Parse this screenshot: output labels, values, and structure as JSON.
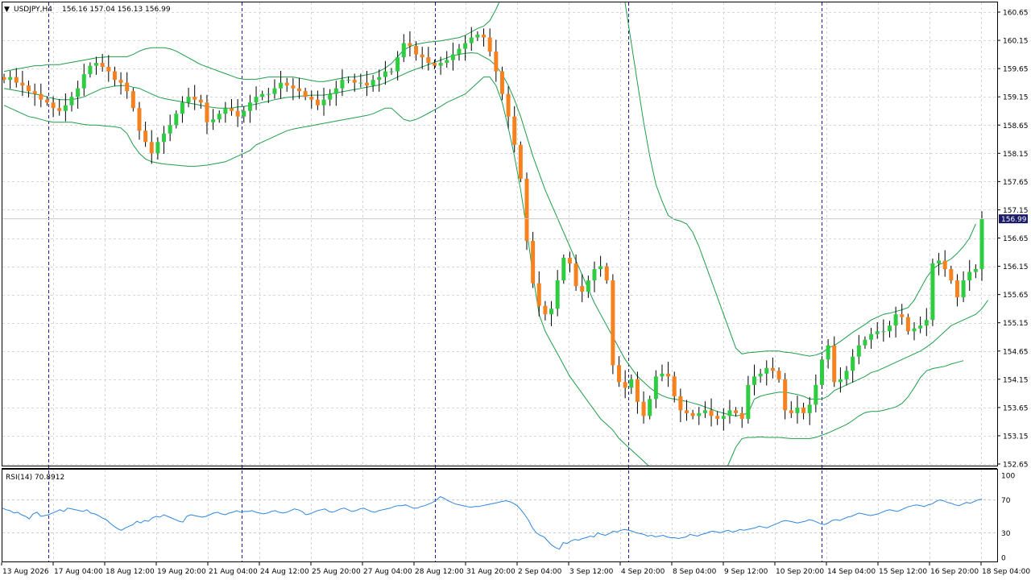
{
  "header": {
    "menu_arrow": "▼",
    "symbol": "USDJPY,H4",
    "ohlc": "156.16 157.04 156.13 156.99"
  },
  "rsi_header": {
    "text": "RSI(14) 70.8912"
  },
  "price_badge": "156.99",
  "colors": {
    "bull": "#2ECC40",
    "bear": "#F5821F",
    "bands": "#1E9E4A",
    "rsi_line": "#2E86DE",
    "grid": "#d8d8d8",
    "separator": "#1a1aa0",
    "badge_bg": "#1a1a66"
  },
  "chart_data": {
    "type": "candlestick",
    "title": "USDJPY,H4",
    "price_axis": {
      "min": 152.65,
      "max": 160.65,
      "ticks": [
        "160.65",
        "160.15",
        "159.65",
        "159.15",
        "158.65",
        "158.15",
        "157.65",
        "157.15",
        "156.65",
        "156.15",
        "155.65",
        "155.15",
        "154.65",
        "154.15",
        "153.65",
        "153.15",
        "152.65"
      ]
    },
    "time_labels": [
      "13 Aug 2026",
      "17 Aug 04:00",
      "18 Aug 12:00",
      "19 Aug 20:00",
      "21 Aug 04:00",
      "24 Aug 12:00",
      "25 Aug 20:00",
      "27 Aug 04:00",
      "28 Aug 12:00",
      "31 Aug 20:00",
      "2 Sep 04:00",
      "3 Sep 12:00",
      "4 Sep 20:00",
      "8 Sep 04:00",
      "9 Sep 12:00",
      "10 Sep 20:00",
      "14 Sep 04:00",
      "15 Sep 12:00",
      "16 Sep 20:00",
      "18 Sep 04:00"
    ],
    "current_price": 156.99,
    "candle_closes": [
      159.45,
      159.5,
      159.4,
      159.35,
      159.25,
      159.2,
      159.1,
      159.05,
      158.95,
      158.9,
      159.0,
      159.15,
      159.3,
      159.55,
      159.7,
      159.75,
      159.68,
      159.6,
      159.45,
      159.4,
      159.25,
      158.95,
      158.55,
      158.35,
      158.15,
      158.35,
      158.5,
      158.65,
      158.85,
      159.05,
      159.15,
      159.1,
      159.05,
      158.7,
      158.75,
      158.85,
      158.95,
      158.9,
      158.8,
      158.9,
      159.05,
      159.15,
      159.2,
      159.2,
      159.3,
      159.4,
      159.35,
      159.3,
      159.25,
      159.15,
      159.1,
      159.0,
      159.1,
      159.2,
      159.3,
      159.45,
      159.45,
      159.4,
      159.4,
      159.35,
      159.45,
      159.5,
      159.6,
      159.6,
      159.85,
      160.1,
      160.05,
      159.9,
      159.85,
      159.75,
      159.7,
      159.75,
      159.8,
      159.9,
      160.0,
      160.1,
      160.2,
      160.25,
      160.2,
      159.95,
      159.6,
      159.2,
      158.8,
      158.3,
      157.7,
      156.6,
      155.85,
      155.45,
      155.3,
      155.4,
      155.9,
      156.3,
      156.2,
      155.8,
      155.7,
      155.9,
      156.1,
      156.15,
      155.9,
      154.4,
      154.1,
      154.0,
      154.15,
      153.75,
      153.5,
      153.8,
      154.2,
      154.25,
      154.2,
      153.85,
      153.6,
      153.55,
      153.5,
      153.55,
      153.6,
      153.5,
      153.45,
      153.5,
      153.6,
      153.55,
      153.45,
      154.05,
      154.2,
      154.25,
      154.35,
      154.3,
      154.15,
      153.6,
      153.55,
      153.65,
      153.55,
      153.7,
      154.05,
      154.5,
      154.75,
      154.1,
      154.15,
      154.3,
      154.55,
      154.75,
      154.85,
      154.95,
      155.0,
      155.0,
      155.1,
      155.3,
      155.25,
      155.0,
      155.05,
      155.1,
      155.2,
      156.2,
      156.25,
      156.1,
      155.9,
      155.6,
      155.9,
      156.05,
      156.1,
      156.99
    ],
    "upper_band": [
      159.6,
      159.62,
      159.64,
      159.66,
      159.68,
      159.7,
      159.7,
      159.72,
      159.72,
      159.72,
      159.74,
      159.76,
      159.78,
      159.8,
      159.82,
      159.84,
      159.85,
      159.86,
      159.86,
      159.86,
      159.86,
      159.9,
      159.96,
      160.0,
      160.02,
      160.02,
      160.02,
      160.0,
      159.96,
      159.9,
      159.84,
      159.78,
      159.72,
      159.68,
      159.64,
      159.6,
      159.56,
      159.52,
      159.48,
      159.46,
      159.46,
      159.46,
      159.48,
      159.5,
      159.5,
      159.5,
      159.5,
      159.5,
      159.48,
      159.46,
      159.44,
      159.42,
      159.42,
      159.44,
      159.46,
      159.48,
      159.5,
      159.5,
      159.52,
      159.54,
      159.56,
      159.6,
      159.66,
      159.74,
      159.86,
      159.98,
      160.04,
      160.08,
      160.1,
      160.12,
      160.13,
      160.14,
      160.16,
      160.18,
      160.2,
      160.24,
      160.3,
      160.36,
      160.4,
      160.5,
      160.7,
      160.95,
      161.25,
      161.6,
      162.0,
      162.5,
      163.0,
      163.5,
      163.9,
      164.2,
      164.4,
      164.5,
      164.5,
      164.4,
      164.2,
      164.0,
      163.7,
      163.3,
      162.8,
      162.2,
      161.5,
      160.8,
      160.1,
      159.4,
      158.7,
      158.1,
      157.6,
      157.3,
      157.05,
      156.98,
      156.95,
      156.9,
      156.75,
      156.5,
      156.2,
      155.9,
      155.6,
      155.3,
      155.0,
      154.7,
      154.6,
      154.62,
      154.63,
      154.64,
      154.65,
      154.65,
      154.65,
      154.63,
      154.62,
      154.6,
      154.58,
      154.56,
      154.58,
      154.62,
      154.7,
      154.75,
      154.82,
      154.9,
      154.98,
      155.05,
      155.12,
      155.2,
      155.25,
      155.3,
      155.32,
      155.35,
      155.38,
      155.42,
      155.55,
      155.75,
      155.95,
      156.1,
      156.18,
      156.22,
      156.28,
      156.38,
      156.5,
      156.65,
      156.9
    ],
    "middle_band": [
      159.3,
      159.28,
      159.26,
      159.24,
      159.22,
      159.2,
      159.18,
      159.15,
      159.12,
      159.1,
      159.1,
      159.1,
      159.12,
      159.15,
      159.2,
      159.25,
      159.3,
      159.32,
      159.34,
      159.35,
      159.35,
      159.32,
      159.3,
      159.25,
      159.2,
      159.15,
      159.12,
      159.1,
      159.08,
      159.06,
      159.04,
      159.02,
      159.0,
      158.98,
      158.96,
      158.95,
      158.95,
      158.95,
      158.97,
      158.98,
      159.0,
      159.02,
      159.05,
      159.07,
      159.1,
      159.12,
      159.14,
      159.15,
      159.16,
      159.17,
      159.18,
      159.18,
      159.18,
      159.2,
      159.22,
      159.24,
      159.26,
      159.28,
      159.3,
      159.32,
      159.34,
      159.36,
      159.4,
      159.45,
      159.5,
      159.55,
      159.6,
      159.64,
      159.68,
      159.72,
      159.76,
      159.8,
      159.84,
      159.88,
      159.9,
      159.92,
      159.93,
      159.92,
      159.86,
      159.8,
      159.7,
      159.55,
      159.35,
      159.1,
      158.8,
      158.45,
      158.1,
      157.8,
      157.5,
      157.25,
      157.0,
      156.75,
      156.5,
      156.25,
      156.0,
      155.75,
      155.5,
      155.3,
      155.1,
      154.9,
      154.7,
      154.5,
      154.35,
      154.2,
      154.1,
      154.0,
      153.92,
      153.86,
      153.82,
      153.8,
      153.78,
      153.76,
      153.73,
      153.7,
      153.66,
      153.62,
      153.58,
      153.55,
      153.52,
      153.5,
      153.52,
      153.55,
      153.8,
      153.85,
      153.88,
      153.9,
      153.92,
      153.92,
      153.9,
      153.88,
      153.85,
      153.8,
      153.8,
      153.8,
      153.85,
      153.95,
      154.0,
      154.05,
      154.1,
      154.15,
      154.2,
      154.27,
      154.3,
      154.35,
      154.4,
      154.45,
      154.5,
      154.55,
      154.6,
      154.65,
      154.72,
      154.8,
      154.9,
      155.0,
      155.1,
      155.15,
      155.2,
      155.25,
      155.3,
      155.4,
      155.55
    ],
    "lower_band": [
      159.0,
      158.95,
      158.9,
      158.85,
      158.8,
      158.78,
      158.75,
      158.72,
      158.7,
      158.7,
      158.7,
      158.7,
      158.68,
      158.66,
      158.65,
      158.65,
      158.64,
      158.63,
      158.62,
      158.6,
      158.5,
      158.3,
      158.15,
      158.05,
      158.0,
      157.98,
      157.96,
      157.95,
      157.94,
      157.93,
      157.92,
      157.92,
      157.93,
      157.94,
      157.96,
      157.98,
      158.0,
      158.05,
      158.1,
      158.15,
      158.2,
      158.3,
      158.35,
      158.4,
      158.45,
      158.5,
      158.55,
      158.58,
      158.6,
      158.62,
      158.64,
      158.66,
      158.68,
      158.7,
      158.72,
      158.74,
      158.76,
      158.78,
      158.8,
      158.82,
      158.85,
      158.9,
      158.95,
      158.95,
      158.85,
      158.75,
      158.72,
      158.75,
      158.8,
      158.86,
      158.92,
      158.98,
      159.05,
      159.1,
      159.15,
      159.2,
      159.3,
      159.4,
      159.5,
      159.5,
      159.35,
      159.05,
      158.6,
      158.1,
      157.5,
      156.8,
      156.0,
      155.3,
      155.0,
      154.8,
      154.6,
      154.4,
      154.2,
      154.05,
      153.9,
      153.75,
      153.6,
      153.45,
      153.35,
      153.25,
      153.1,
      153.0,
      152.9,
      152.8,
      152.7,
      152.6,
      152.5,
      152.4,
      152.3,
      152.2,
      152.1,
      152.0,
      151.9,
      151.85,
      151.9,
      152.0,
      152.2,
      152.45,
      152.7,
      152.95,
      153.1,
      153.12,
      153.12,
      153.13,
      153.12,
      153.12,
      153.12,
      153.11,
      153.1,
      153.1,
      153.1,
      153.1,
      153.12,
      153.16,
      153.2,
      153.25,
      153.3,
      153.35,
      153.42,
      153.5,
      153.56,
      153.58,
      153.58,
      153.6,
      153.63,
      153.66,
      153.72,
      153.84,
      154.0,
      154.18,
      154.3,
      154.34,
      154.36,
      154.38,
      154.42,
      154.45,
      154.48
    ],
    "rsi": {
      "name": "RSI(14)",
      "current": 70.8912,
      "levels": [
        70,
        30
      ],
      "axis_labels": [
        "100",
        "70",
        "30",
        "0"
      ],
      "values": [
        60,
        58,
        57,
        54,
        55,
        52,
        50,
        47,
        53,
        55,
        50,
        51,
        52,
        54,
        56,
        58,
        56,
        60,
        59,
        58,
        57,
        56,
        58,
        54,
        53,
        51,
        48,
        46,
        42,
        38,
        35,
        33,
        36,
        38,
        40,
        44,
        42,
        45,
        44,
        48,
        50,
        49,
        52,
        50,
        48,
        46,
        44,
        43,
        50,
        52,
        51,
        50,
        49,
        50,
        52,
        54,
        55,
        53,
        52,
        54,
        55,
        57,
        55,
        56,
        56,
        57,
        55,
        54,
        53,
        54,
        56,
        57,
        55,
        54,
        55,
        57,
        59,
        58,
        56,
        52,
        53,
        55,
        57,
        58,
        59,
        56,
        55,
        57,
        59,
        60,
        58,
        56,
        57,
        59,
        60,
        58,
        56,
        55,
        57,
        58,
        59,
        60,
        62,
        63,
        63,
        64,
        62,
        60,
        60,
        62,
        63,
        65,
        67,
        70,
        74,
        72,
        69,
        67,
        65,
        64,
        63,
        62,
        61,
        62,
        62,
        63,
        64,
        65,
        66,
        67,
        68,
        69,
        68,
        66,
        63,
        58,
        52,
        45,
        36,
        30,
        27,
        25,
        20,
        15,
        12,
        10,
        18,
        17,
        20,
        22,
        21,
        23,
        24,
        26,
        25,
        30,
        28,
        27,
        29,
        32,
        31,
        33,
        34,
        33,
        32,
        30,
        29,
        28,
        26,
        27,
        25,
        26,
        27,
        25,
        24,
        24,
        23,
        24,
        25,
        28,
        27,
        26,
        28,
        29,
        31,
        32,
        31,
        30,
        32,
        33,
        31,
        32,
        34,
        33,
        34,
        35,
        36,
        38,
        37,
        36,
        38,
        40,
        42,
        44,
        45,
        44,
        43,
        42,
        43,
        44,
        46,
        45,
        43,
        41,
        40,
        42,
        45,
        46,
        45,
        47,
        49,
        50,
        52,
        54,
        53,
        52,
        51,
        52,
        53,
        55,
        57,
        58,
        57,
        56,
        58,
        60,
        62,
        63,
        64,
        63,
        62,
        64,
        65,
        68,
        70,
        69,
        67,
        66,
        64,
        63,
        65,
        67,
        66,
        68,
        70,
        71
      ]
    }
  }
}
